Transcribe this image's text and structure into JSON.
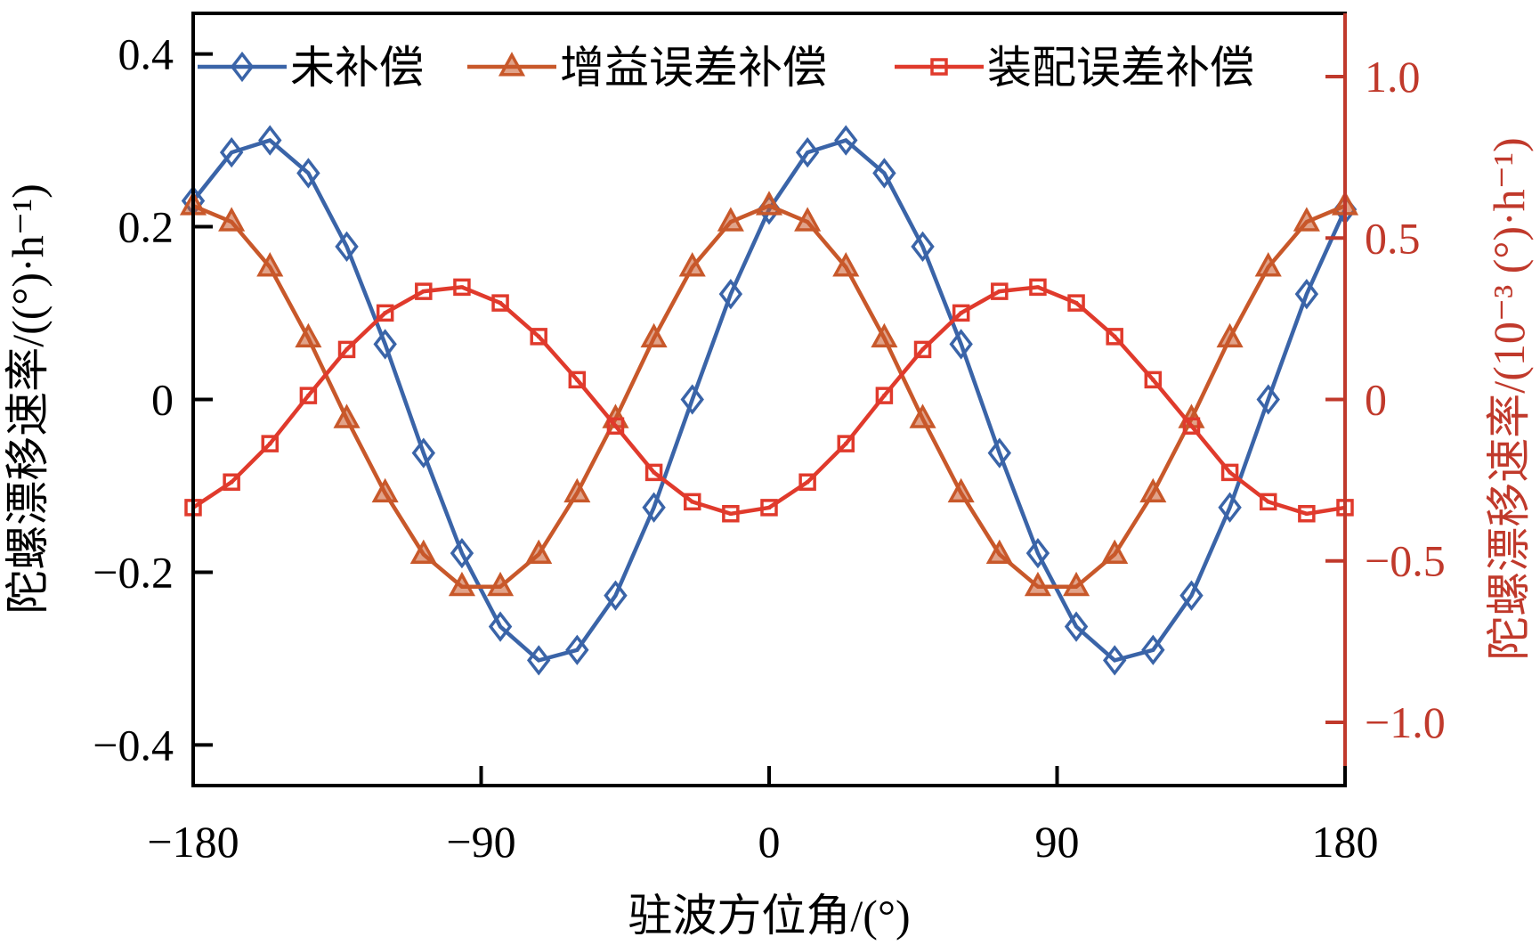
{
  "chart_data": {
    "type": "line",
    "title": "",
    "xlabel": "驻波方位角/(°)",
    "ylabel": "陀螺漂移速率/((°)·h⁻¹)",
    "ylabel_right": "陀螺漂移速率/(10⁻³ (°)·h⁻¹)",
    "xlim": [
      -180,
      180
    ],
    "ylim": [
      -0.447,
      0.447
    ],
    "ylim_right": [
      -1.196,
      1.196
    ],
    "xticks": [
      -180,
      -90,
      0,
      90,
      180
    ],
    "xtick_labels": [
      "−180",
      "−90",
      "0",
      "90",
      "180"
    ],
    "yticks": [
      0.4,
      0.2,
      0,
      -0.2,
      -0.4
    ],
    "ytick_labels": [
      "0.4",
      "0.2",
      "0",
      "−0.2",
      "−0.4"
    ],
    "yticks_right": [
      1.0,
      0.5,
      0,
      -0.5,
      -1.0
    ],
    "ytick_labels_right": [
      "1.0",
      "0.5",
      "0",
      "−0.5",
      "−1.0"
    ],
    "grid": false,
    "legend_position": "top",
    "x": [
      -180,
      -168,
      -156,
      -144,
      -132,
      -120,
      -108,
      -96,
      -84,
      -72,
      -60,
      -48,
      -36,
      -24,
      -12,
      0,
      12,
      24,
      36,
      48,
      60,
      72,
      84,
      96,
      108,
      120,
      132,
      144,
      156,
      168,
      180
    ],
    "series": [
      {
        "name": "未补偿",
        "axis": "left",
        "marker": "diamond",
        "color": "#3a64a8",
        "values": [
          0.23,
          0.286,
          0.3,
          0.262,
          0.177,
          0.064,
          -0.062,
          -0.178,
          -0.263,
          -0.302,
          -0.29,
          -0.227,
          -0.125,
          0.0,
          0.122,
          0.22,
          0.286,
          0.3,
          0.262,
          0.177,
          0.064,
          -0.062,
          -0.178,
          -0.263,
          -0.302,
          -0.29,
          -0.227,
          -0.125,
          0.0,
          0.122,
          0.22
        ]
      },
      {
        "name": "增益误差补偿",
        "axis": "right",
        "marker": "triangle",
        "color": "#c8582a",
        "values": [
          0.6,
          0.55,
          0.41,
          0.19,
          -0.06,
          -0.29,
          -0.48,
          -0.58,
          -0.58,
          -0.48,
          -0.29,
          -0.06,
          0.19,
          0.41,
          0.55,
          0.6,
          0.55,
          0.41,
          0.19,
          -0.06,
          -0.29,
          -0.48,
          -0.58,
          -0.58,
          -0.48,
          -0.29,
          -0.06,
          0.19,
          0.41,
          0.55,
          0.6
        ]
      },
      {
        "name": "装配误差补偿",
        "axis": "right",
        "marker": "square",
        "color": "#e03a2c",
        "values": [
          -0.335,
          -0.256,
          -0.137,
          0.012,
          0.155,
          0.268,
          0.335,
          0.348,
          0.299,
          0.195,
          0.061,
          -0.082,
          -0.226,
          -0.317,
          -0.354,
          -0.335,
          -0.256,
          -0.137,
          0.012,
          0.155,
          0.268,
          0.335,
          0.348,
          0.299,
          0.195,
          0.061,
          -0.082,
          -0.226,
          -0.317,
          -0.354,
          -0.335
        ]
      }
    ],
    "colors": {
      "axis": "#000000",
      "right_axis": "#c0392b"
    }
  }
}
